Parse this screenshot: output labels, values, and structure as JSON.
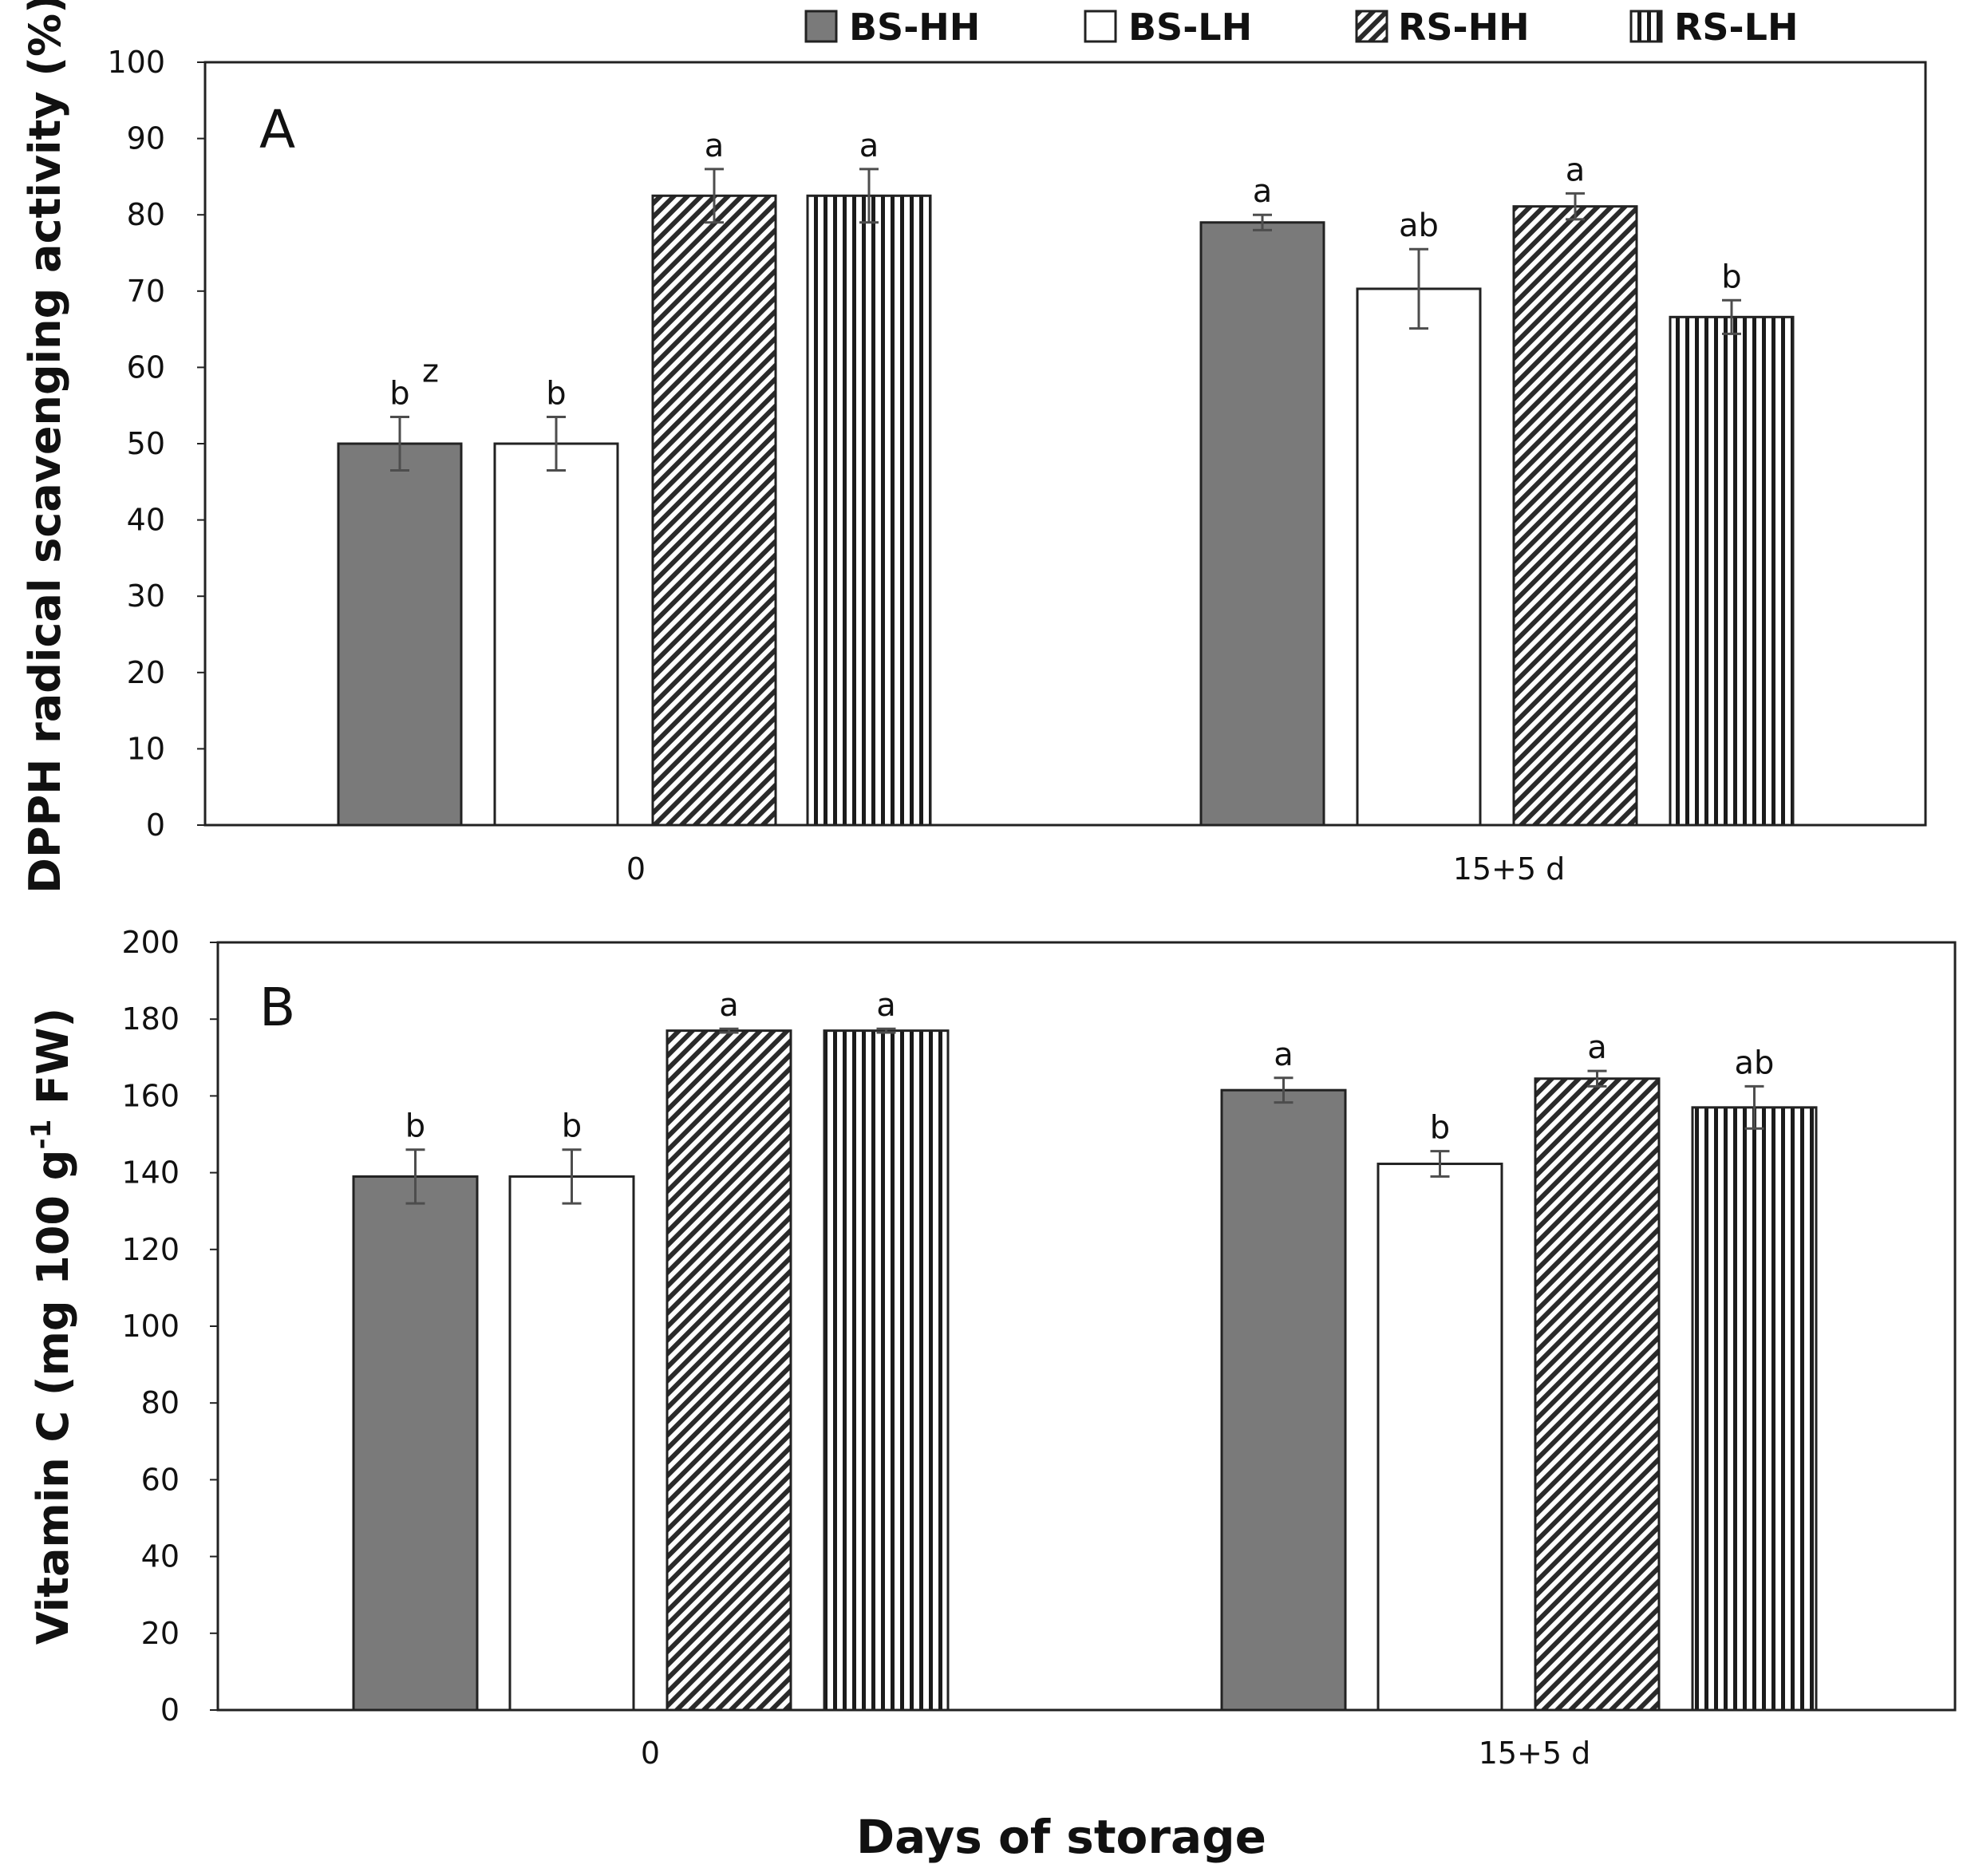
{
  "legend": [
    {
      "label": "BS-HH",
      "pattern": "solid"
    },
    {
      "label": "BS-LH",
      "pattern": "white"
    },
    {
      "label": "RS-HH",
      "pattern": "diagonal"
    },
    {
      "label": "RS-LH",
      "pattern": "vertical"
    }
  ],
  "colors": {
    "dark_bar": "#7a7a7a",
    "frame": "#222222",
    "error_bar": "#4d4d4d"
  },
  "x_title": "Days of storage",
  "chart_data": [
    {
      "type": "bar",
      "panel_label": "A",
      "categories": [
        "0",
        "15+5 d"
      ],
      "ylabel": "DPPH radical scavenging activity (%)",
      "ylim": [
        0,
        100
      ],
      "yticks": [
        0,
        10,
        20,
        30,
        40,
        50,
        60,
        70,
        80,
        90,
        100
      ],
      "series": [
        {
          "name": "BS-HH",
          "values": [
            50,
            79
          ],
          "errors": [
            3.5,
            1
          ],
          "letters": [
            "b",
            "a"
          ],
          "superscripts": [
            "z",
            ""
          ]
        },
        {
          "name": "BS-LH",
          "values": [
            50,
            70.3
          ],
          "errors": [
            3.5,
            5.2
          ],
          "letters": [
            "b",
            "ab"
          ],
          "superscripts": [
            "",
            ""
          ]
        },
        {
          "name": "RS-HH",
          "values": [
            82.5,
            81.1
          ],
          "errors": [
            3.5,
            1.7
          ],
          "letters": [
            "a",
            "a"
          ],
          "superscripts": [
            "",
            ""
          ]
        },
        {
          "name": "RS-LH",
          "values": [
            82.5,
            66.6
          ],
          "errors": [
            3.5,
            2.2
          ],
          "letters": [
            "a",
            "b"
          ],
          "superscripts": [
            "",
            ""
          ]
        }
      ]
    },
    {
      "type": "bar",
      "panel_label": "B",
      "categories": [
        "0",
        "15+5 d"
      ],
      "ylabel": "Vitamin C (mg 100 g",
      "ylabel_sup": "-1",
      "ylabel_tail": " FW)",
      "ylim": [
        0,
        200
      ],
      "yticks": [
        0,
        20,
        40,
        60,
        80,
        100,
        120,
        140,
        160,
        180,
        200
      ],
      "series": [
        {
          "name": "BS-HH",
          "values": [
            139,
            161.5
          ],
          "errors": [
            7,
            3.2
          ],
          "letters": [
            "b",
            "a"
          ],
          "superscripts": [
            "",
            ""
          ]
        },
        {
          "name": "BS-LH",
          "values": [
            139,
            142.3
          ],
          "errors": [
            7,
            3.3
          ],
          "letters": [
            "b",
            "b"
          ],
          "superscripts": [
            "",
            ""
          ]
        },
        {
          "name": "RS-HH",
          "values": [
            177,
            164.5
          ],
          "errors": [
            0.5,
            2
          ],
          "letters": [
            "a",
            "a"
          ],
          "superscripts": [
            "",
            ""
          ]
        },
        {
          "name": "RS-LH",
          "values": [
            177,
            157
          ],
          "errors": [
            0.5,
            5.5
          ],
          "letters": [
            "a",
            "ab"
          ],
          "superscripts": [
            "",
            ""
          ]
        }
      ]
    }
  ]
}
